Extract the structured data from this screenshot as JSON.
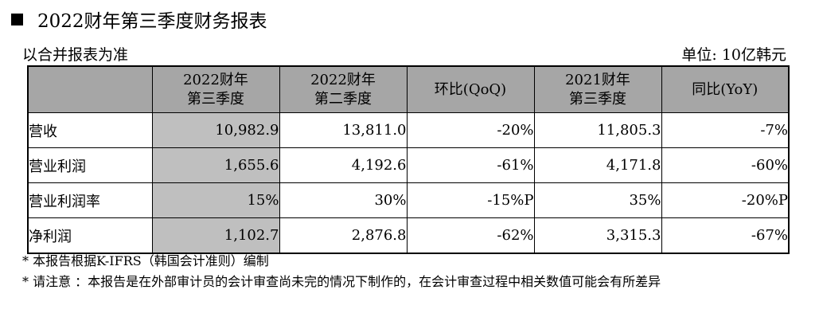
{
  "title": "2022财年第三季度财务报表",
  "basis": "以合并报表为准",
  "unit": "单位: 10亿韩元",
  "columns": [
    {
      "line1": "2022财年",
      "line2": "第三季度"
    },
    {
      "line1": "2022财年",
      "line2": "第二季度"
    },
    {
      "line1": "环比(QoQ)",
      "line2": ""
    },
    {
      "line1": "2021财年",
      "line2": "第三季度"
    },
    {
      "line1": "同比(YoY)",
      "line2": ""
    }
  ],
  "rows": [
    {
      "label": "营收",
      "values": [
        "10,982.9",
        "13,811.0",
        "-20%",
        "11,805.3",
        "-7%"
      ]
    },
    {
      "label": "营业利润",
      "values": [
        "1,655.6",
        "4,192.6",
        "-61%",
        "4,171.8",
        "-60%"
      ]
    },
    {
      "label": "营业利润率",
      "values": [
        "15%",
        "30%",
        "-15%P",
        "35%",
        "-20%P"
      ]
    },
    {
      "label": "净利润",
      "values": [
        "1,102.7",
        "2,876.8",
        "-62%",
        "3,315.3",
        "-67%"
      ]
    }
  ],
  "notes": [
    "* 本报告根据K-IFRS（韩国会计准则）编制",
    "*  请注意 ：本报告是在外部审计员的会计审查尚未完的情况下制作的，在会计审查过程中相关数值可能会有所差异"
  ]
}
